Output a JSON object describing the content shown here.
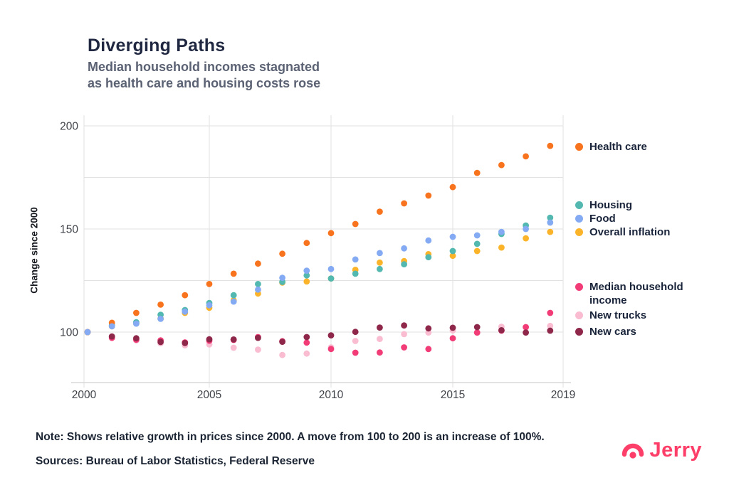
{
  "header": {
    "title": "Diverging Paths",
    "subtitle_line1": "Median household incomes stagnated",
    "subtitle_line2": "as health care and housing costs rose"
  },
  "chart_data": {
    "type": "scatter",
    "title": "Diverging Paths",
    "xlabel": "",
    "ylabel": "Change since 2000",
    "xlim": [
      2000,
      2019
    ],
    "ylim": [
      75,
      205
    ],
    "grid": true,
    "legend_position": "right",
    "x_ticks": [
      2000,
      2005,
      2010,
      2015,
      2019
    ],
    "y_gridlines": [
      100,
      125,
      150,
      175,
      200
    ],
    "y_tick_labels": [
      100,
      150,
      200
    ],
    "x": [
      2000,
      2001,
      2002,
      2003,
      2004,
      2005,
      2006,
      2007,
      2008,
      2009,
      2010,
      2011,
      2012,
      2013,
      2014,
      2015,
      2016,
      2017,
      2018,
      2019
    ],
    "series": [
      {
        "id": "new-trucks",
        "name": "New trucks",
        "color": "#f9bcd0",
        "values": [
          100,
          97.6,
          96,
          94.6,
          93.6,
          94,
          92.4,
          91.5,
          88.9,
          89.6,
          92.6,
          95.7,
          96.7,
          99,
          99.8,
          100.8,
          99.7,
          102.6,
          102.3,
          103
        ]
      },
      {
        "id": "median-household-income",
        "name": "Median household income",
        "color": "#f23c77",
        "values": [
          100,
          97.2,
          96.3,
          96,
          95,
          95.8,
          96.2,
          97.6,
          95.6,
          94.9,
          91.8,
          90,
          90.1,
          92.6,
          91.8,
          97,
          99.8,
          100.7,
          102.4,
          109.3
        ]
      },
      {
        "id": "new-cars",
        "name": "New cars",
        "color": "#8e2749",
        "values": [
          100,
          97.9,
          97,
          95.2,
          94.7,
          96.5,
          96.4,
          97.2,
          95.3,
          97.6,
          98.4,
          100.1,
          102.2,
          103.2,
          101.8,
          102.1,
          102.4,
          100.9,
          99.8,
          100.7
        ]
      },
      {
        "id": "overall-inflation",
        "name": "Overall inflation",
        "color": "#fbb429",
        "values": [
          100,
          102.8,
          104.2,
          106.5,
          109.3,
          111.8,
          115.4,
          118.7,
          124,
          124.5,
          126,
          130.2,
          133.7,
          134.4,
          137.8,
          137,
          139.3,
          141,
          145.5,
          148.6
        ]
      },
      {
        "id": "housing",
        "name": "Housing",
        "color": "#52b8b0",
        "values": [
          100,
          103.3,
          104.8,
          108.4,
          110.7,
          114.1,
          117.9,
          123.3,
          124.3,
          127.5,
          126,
          128.3,
          130.6,
          132.9,
          136.3,
          139.3,
          142.8,
          147.6,
          151.7,
          155.5
        ]
      },
      {
        "id": "health-care",
        "name": "Health care",
        "color": "#f8731d",
        "values": [
          100,
          104.5,
          109.3,
          113.3,
          117.9,
          123.3,
          128.3,
          133.2,
          138,
          143.2,
          148,
          152.4,
          158.4,
          162.4,
          166.2,
          170.3,
          177.2,
          181,
          185.2,
          190.3
        ]
      },
      {
        "id": "food",
        "name": "Food",
        "color": "#84aaf3",
        "values": [
          100,
          102.8,
          104.1,
          106.4,
          109.9,
          113,
          114.8,
          120.6,
          126.3,
          129.8,
          130.6,
          135.2,
          138.3,
          140.6,
          144.4,
          146.2,
          146.9,
          148.6,
          150,
          153.1
        ]
      }
    ]
  },
  "footer": {
    "note": "Note: Shows relative growth in prices since 2000. A move from 100 to 200 is an increase of 100%.",
    "sources": "Sources: Bureau of Labor Statistics, Federal Reserve"
  },
  "brand": {
    "name": "Jerry",
    "color": "#fc3e68"
  }
}
